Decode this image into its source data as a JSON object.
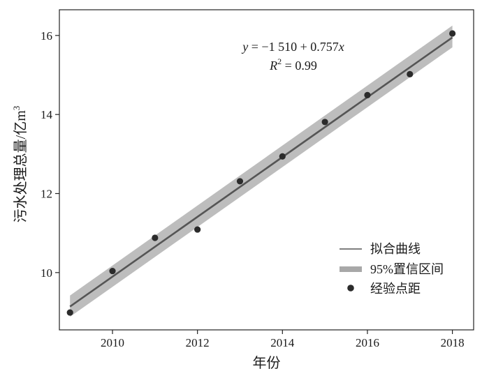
{
  "chart_data": {
    "type": "scatter",
    "title": "",
    "xlabel": "年份",
    "ylabel": "污水处理总量/亿m",
    "ylabel_sup": "3",
    "xlim": [
      2008.75,
      2018.5
    ],
    "ylim": [
      8.55,
      16.65
    ],
    "xticks": [
      2010,
      2012,
      2014,
      2016,
      2018
    ],
    "yticks": [
      10,
      12,
      14,
      16
    ],
    "xtick_labels": [
      "2010",
      "2012",
      "2014",
      "2016",
      "2018"
    ],
    "ytick_labels": [
      "10",
      "12",
      "14",
      "16"
    ],
    "grid": false,
    "legend_position": "bottom-right",
    "series": [
      {
        "name": "经验点距",
        "kind": "points",
        "x": [
          2009,
          2010,
          2011,
          2012,
          2013,
          2014,
          2015,
          2016,
          2017,
          2018
        ],
        "y": [
          8.99,
          10.04,
          10.88,
          11.09,
          12.31,
          12.94,
          13.81,
          14.49,
          15.02,
          16.05
        ],
        "color": "#2b2b2b"
      },
      {
        "name": "拟合曲线",
        "kind": "line",
        "x": [
          2009,
          2018
        ],
        "y": [
          9.14,
          15.95
        ],
        "color": "#555555"
      },
      {
        "name": "95%置信区间",
        "kind": "band",
        "x": [
          2009,
          2018
        ],
        "y_lower": [
          8.88,
          15.7
        ],
        "y_upper": [
          9.42,
          16.25
        ],
        "color": "#bdbdbd"
      }
    ],
    "annotation": {
      "y_var": "y",
      "equals": " = ",
      "minus_sign": "−",
      "expr": "1 510 + 0.757",
      "x_var": "x",
      "r_var": "R",
      "r_sup": "2",
      "r_value": " = 0.99"
    }
  }
}
